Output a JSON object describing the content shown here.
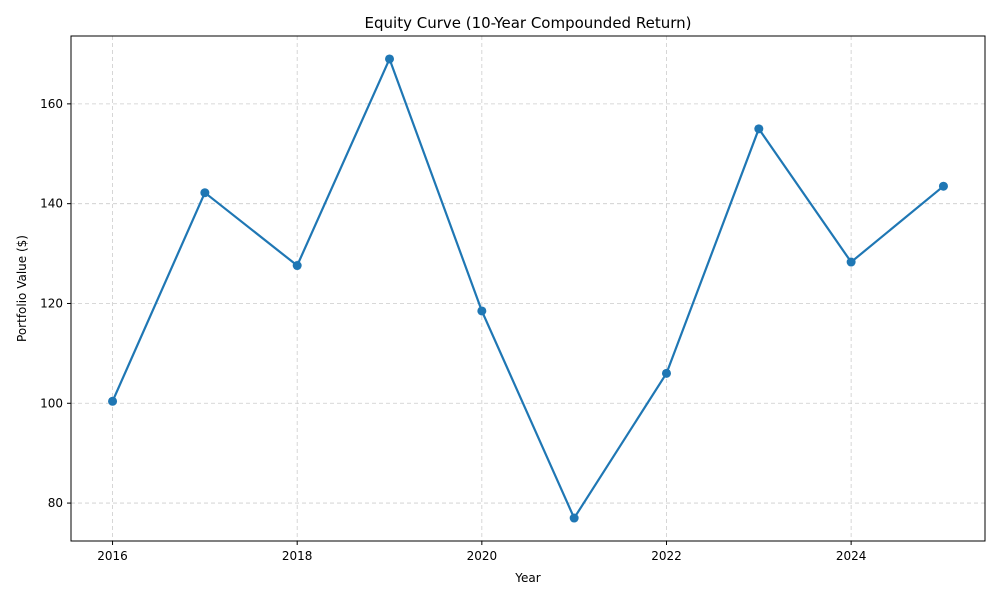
{
  "chart_data": {
    "type": "line",
    "title": "Equity Curve (10-Year Compounded Return)",
    "xlabel": "Year",
    "ylabel": "Portfolio Value ($)",
    "x": [
      2016,
      2017,
      2018,
      2019,
      2020,
      2021,
      2022,
      2023,
      2024,
      2025
    ],
    "series": [
      {
        "values": [
          100.4,
          142.2,
          127.6,
          169.0,
          118.5,
          77.0,
          106.0,
          155.0,
          128.3,
          143.5
        ]
      }
    ],
    "xlim": [
      2015.55,
      2025.45
    ],
    "ylim": [
      72.4,
      173.6
    ],
    "xticks": [
      2016,
      2018,
      2020,
      2022,
      2024
    ],
    "yticks": [
      80,
      100,
      120,
      140,
      160
    ],
    "grid": true,
    "line_color": "#1f77b4",
    "marker": "circle"
  }
}
